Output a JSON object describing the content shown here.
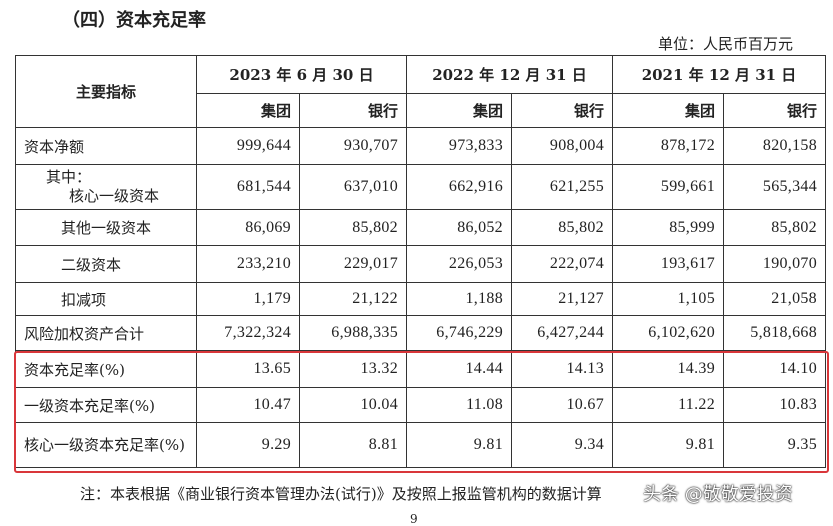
{
  "title": "（四）资本充足率",
  "unit": "单位：人民币百万元",
  "header": {
    "indicator": "主要指标",
    "periods": [
      "2023 年 6 月 30 日",
      "2022 年 12 月 31 日",
      "2021 年 12 月 31 日"
    ],
    "sub": [
      "集团",
      "银行",
      "集团",
      "银行",
      "集团",
      "银行"
    ]
  },
  "rows": [
    {
      "label": "资本净额",
      "values": [
        "999,644",
        "930,707",
        "973,833",
        "908,004",
        "878,172",
        "820,158"
      ]
    },
    {
      "label": "其中：",
      "label2": "核心一级资本",
      "values": [
        "681,544",
        "637,010",
        "662,916",
        "621,255",
        "599,661",
        "565,344"
      ]
    },
    {
      "label": "其他一级资本",
      "values": [
        "86,069",
        "85,802",
        "86,052",
        "85,802",
        "85,999",
        "85,802"
      ]
    },
    {
      "label": "二级资本",
      "values": [
        "233,210",
        "229,017",
        "226,053",
        "222,074",
        "193,617",
        "190,070"
      ]
    },
    {
      "label": "扣减项",
      "values": [
        "1,179",
        "21,122",
        "1,188",
        "21,127",
        "1,105",
        "21,058"
      ]
    },
    {
      "label": "风险加权资产合计",
      "values": [
        "7,322,324",
        "6,988,335",
        "6,746,229",
        "6,427,244",
        "6,102,620",
        "5,818,668"
      ]
    },
    {
      "label": "资本充足率(%)",
      "values": [
        "13.65",
        "13.32",
        "14.44",
        "14.13",
        "14.39",
        "14.10"
      ]
    },
    {
      "label": "一级资本充足率(%)",
      "values": [
        "10.47",
        "10.04",
        "11.08",
        "10.67",
        "11.22",
        "10.83"
      ]
    },
    {
      "label": "核心一级资本充足率(%)",
      "values": [
        "9.29",
        "8.81",
        "9.81",
        "9.34",
        "9.81",
        "9.35"
      ]
    }
  ],
  "note": "注：本表根据《商业银行资本管理办法(试行)》及按照上报监管机构的数据计算",
  "watermark": "头条 @敬敬爱投资",
  "page_number": "9",
  "highlight_color": "#d9363a"
}
